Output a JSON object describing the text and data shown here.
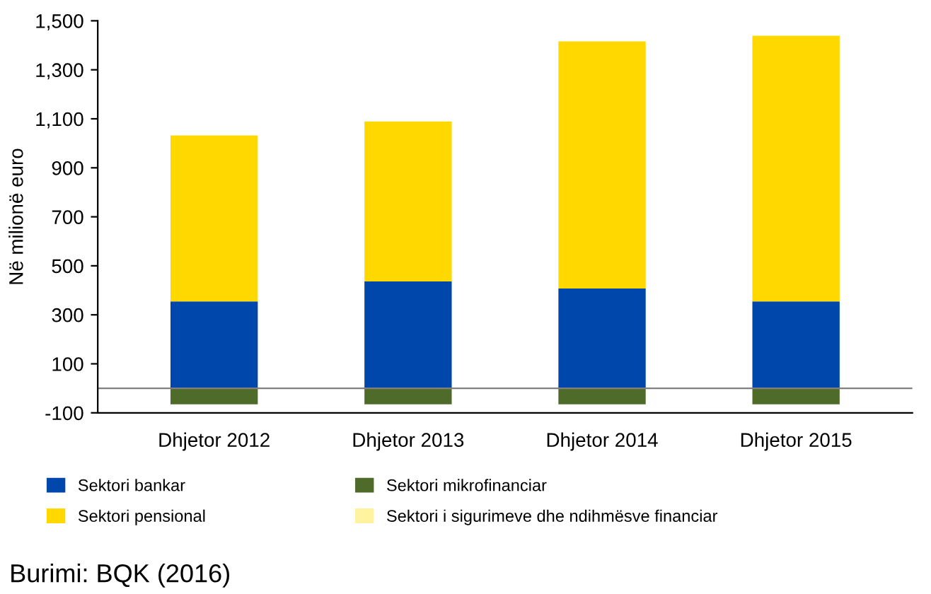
{
  "chart_data": {
    "type": "bar",
    "stacked": true,
    "ylabel": "Në milionë euro",
    "categories": [
      "Dhjetor 2012",
      "Dhjetor 2013",
      "Dhjetor 2014",
      "Dhjetor 2015"
    ],
    "series": [
      {
        "name": "Sektori bankar",
        "color": "#0047ab",
        "values": [
          355,
          436,
          407,
          355
        ]
      },
      {
        "name": "Sektori pensional",
        "color": "#ffd800",
        "values": [
          677,
          653,
          1009,
          1084
        ]
      },
      {
        "name": "Sektori mikrofinanciar",
        "color": "#4e6b2a",
        "values": [
          -65,
          -65,
          -65,
          -65
        ]
      },
      {
        "name": "Sektori i sigurimeve dhe ndihmësve financiar",
        "color": "#fff3a0",
        "values": [
          null,
          null,
          null,
          null
        ]
      }
    ],
    "ylim": [
      -100,
      1500
    ],
    "yticks": [
      {
        "value": -100,
        "label": "-100"
      },
      100,
      300,
      500,
      700,
      900,
      {
        "value": 1100,
        "label": "1,100"
      },
      {
        "value": 1300,
        "label": "1,300"
      },
      {
        "value": 1500,
        "label": "1,500"
      }
    ],
    "grid": false,
    "legend": "bottom",
    "annotations": [
      "Burimi: BQK (2016)"
    ]
  }
}
